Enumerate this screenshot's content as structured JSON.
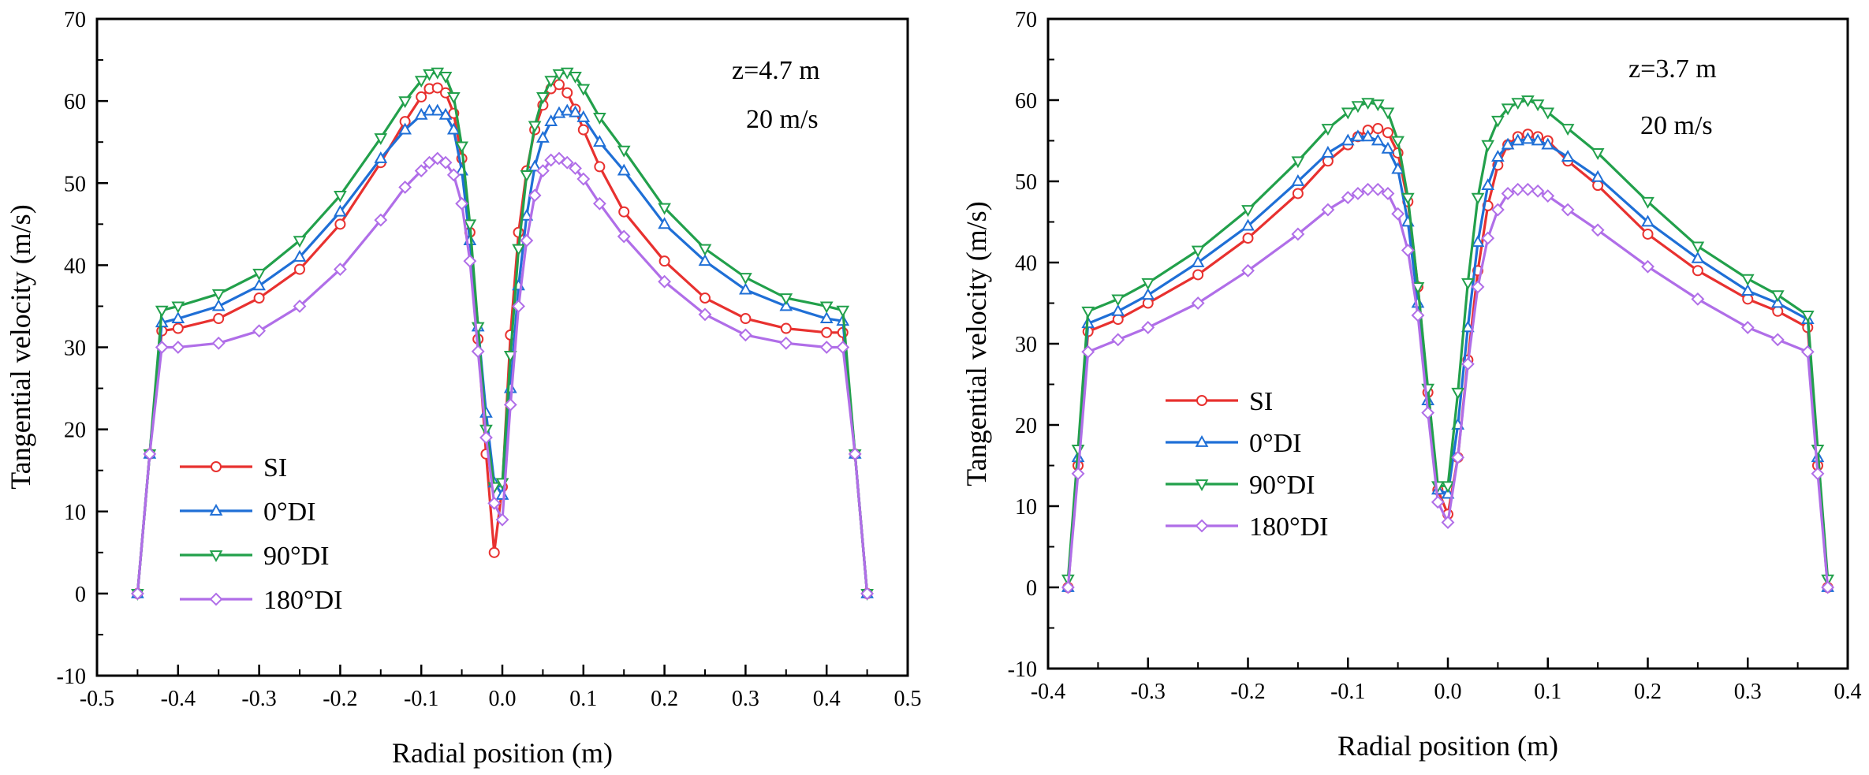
{
  "chart_data": [
    {
      "type": "line",
      "title": "",
      "annotations": [
        "z=4.7 m",
        "20 m/s"
      ],
      "xlabel": "Radial position (m)",
      "ylabel": "Tangential velocity (m/s)",
      "xlim": [
        -0.5,
        0.5
      ],
      "ylim": [
        -10,
        70
      ],
      "xticks": [
        -0.5,
        -0.4,
        -0.3,
        -0.2,
        -0.1,
        0.0,
        0.1,
        0.2,
        0.3,
        0.4,
        0.5
      ],
      "xtick_labels": [
        "-0.5",
        "-0.4",
        "-0.3",
        "-0.2",
        "-0.1",
        "0.0",
        "0.1",
        "0.2",
        "0.3",
        "0.4",
        "0.5"
      ],
      "yticks": [
        -10,
        0,
        10,
        20,
        30,
        40,
        50,
        60,
        70
      ],
      "ytick_labels": [
        "-10",
        "0",
        "10",
        "20",
        "30",
        "40",
        "50",
        "60",
        "70"
      ],
      "grid": false,
      "legend_position": "lower-left",
      "series": [
        {
          "name": "SI",
          "color": "#e8312f",
          "marker": "circle",
          "x": [
            -0.45,
            -0.435,
            -0.42,
            -0.4,
            -0.35,
            -0.3,
            -0.25,
            -0.2,
            -0.15,
            -0.12,
            -0.1,
            -0.09,
            -0.08,
            -0.07,
            -0.06,
            -0.05,
            -0.04,
            -0.03,
            -0.02,
            -0.01,
            0.0,
            0.01,
            0.02,
            0.03,
            0.04,
            0.05,
            0.06,
            0.07,
            0.08,
            0.09,
            0.1,
            0.12,
            0.15,
            0.2,
            0.25,
            0.3,
            0.35,
            0.4,
            0.42,
            0.435,
            0.45
          ],
          "y": [
            0,
            17,
            32,
            32.3,
            33.5,
            36,
            39.5,
            45,
            52.5,
            57.5,
            60.5,
            61.5,
            61.6,
            61,
            58.5,
            53,
            44,
            31,
            17,
            5,
            13,
            31.5,
            44,
            51.5,
            56.5,
            59.5,
            61.5,
            62,
            61,
            59,
            56.5,
            52,
            46.5,
            40.5,
            36,
            33.5,
            32.3,
            31.8,
            31.8,
            17,
            0
          ]
        },
        {
          "name": "0°DI",
          "color": "#1f6fd6",
          "marker": "triangle-up",
          "x": [
            -0.45,
            -0.435,
            -0.42,
            -0.4,
            -0.35,
            -0.3,
            -0.25,
            -0.2,
            -0.15,
            -0.12,
            -0.1,
            -0.09,
            -0.08,
            -0.07,
            -0.06,
            -0.05,
            -0.04,
            -0.03,
            -0.02,
            -0.01,
            0.0,
            0.01,
            0.02,
            0.03,
            0.04,
            0.05,
            0.06,
            0.07,
            0.08,
            0.09,
            0.1,
            0.12,
            0.15,
            0.2,
            0.25,
            0.3,
            0.35,
            0.4,
            0.42,
            0.435,
            0.45
          ],
          "y": [
            0,
            17,
            33,
            33.5,
            35,
            37.5,
            41,
            46.5,
            53,
            56.5,
            58.3,
            58.8,
            58.8,
            58.3,
            56.5,
            51.5,
            43,
            32.5,
            22,
            13.5,
            12,
            25,
            37.5,
            46,
            52,
            55.5,
            57.5,
            58.5,
            58.8,
            58.6,
            58,
            55,
            51.5,
            45,
            40.5,
            37,
            35,
            33.5,
            33.2,
            17,
            0
          ]
        },
        {
          "name": "90°DI",
          "color": "#22a04b",
          "marker": "triangle-down",
          "x": [
            -0.45,
            -0.435,
            -0.42,
            -0.4,
            -0.35,
            -0.3,
            -0.25,
            -0.2,
            -0.15,
            -0.12,
            -0.1,
            -0.09,
            -0.08,
            -0.07,
            -0.06,
            -0.05,
            -0.04,
            -0.03,
            -0.02,
            -0.01,
            0.0,
            0.01,
            0.02,
            0.03,
            0.04,
            0.05,
            0.06,
            0.07,
            0.08,
            0.09,
            0.1,
            0.12,
            0.15,
            0.2,
            0.25,
            0.3,
            0.35,
            0.4,
            0.42,
            0.435,
            0.45
          ],
          "y": [
            0,
            17,
            34.5,
            35,
            36.5,
            39,
            43,
            48.5,
            55.5,
            60,
            62.5,
            63.3,
            63.5,
            63,
            60.5,
            54.5,
            45,
            32.5,
            20,
            13,
            13.5,
            29,
            42,
            51,
            57,
            60.5,
            62.5,
            63.3,
            63.5,
            63,
            61.5,
            58,
            54,
            47,
            42,
            38.5,
            36,
            35,
            34.5,
            17,
            0
          ]
        },
        {
          "name": "180°DI",
          "color": "#b06ee8",
          "marker": "diamond",
          "x": [
            -0.45,
            -0.435,
            -0.42,
            -0.4,
            -0.35,
            -0.3,
            -0.25,
            -0.2,
            -0.15,
            -0.12,
            -0.1,
            -0.09,
            -0.08,
            -0.07,
            -0.06,
            -0.05,
            -0.04,
            -0.03,
            -0.02,
            -0.01,
            0.0,
            0.01,
            0.02,
            0.03,
            0.04,
            0.05,
            0.06,
            0.07,
            0.08,
            0.09,
            0.1,
            0.12,
            0.15,
            0.2,
            0.25,
            0.3,
            0.35,
            0.4,
            0.42,
            0.435,
            0.45
          ],
          "y": [
            0,
            17,
            30,
            30,
            30.5,
            32,
            35,
            39.5,
            45.5,
            49.5,
            51.5,
            52.5,
            53,
            52.5,
            51,
            47.5,
            40.5,
            29.5,
            19,
            11,
            9,
            23,
            35,
            43,
            48.5,
            51.5,
            52.8,
            53,
            52.5,
            51.8,
            50.5,
            47.5,
            43.5,
            38,
            34,
            31.5,
            30.5,
            30,
            30,
            17,
            0
          ]
        }
      ]
    },
    {
      "type": "line",
      "title": "",
      "annotations": [
        "z=3.7 m",
        "20 m/s"
      ],
      "xlabel": "Radial position (m)",
      "ylabel": "Tangential velocity (m/s)",
      "xlim": [
        -0.4,
        0.4
      ],
      "ylim": [
        -10,
        70
      ],
      "xticks": [
        -0.4,
        -0.3,
        -0.2,
        -0.1,
        0.0,
        0.1,
        0.2,
        0.3,
        0.4
      ],
      "xtick_labels": [
        "-0.4",
        "-0.3",
        "-0.2",
        "-0.1",
        "0.0",
        "0.1",
        "0.2",
        "0.3",
        "0.4"
      ],
      "yticks": [
        -10,
        0,
        10,
        20,
        30,
        40,
        50,
        60,
        70
      ],
      "ytick_labels": [
        "-10",
        "0",
        "10",
        "20",
        "30",
        "40",
        "50",
        "60",
        "70"
      ],
      "grid": false,
      "legend_position": "lower-left",
      "series": [
        {
          "name": "SI",
          "color": "#e8312f",
          "marker": "circle",
          "x": [
            -0.38,
            -0.37,
            -0.36,
            -0.33,
            -0.3,
            -0.25,
            -0.2,
            -0.15,
            -0.12,
            -0.1,
            -0.09,
            -0.08,
            -0.07,
            -0.06,
            -0.05,
            -0.04,
            -0.03,
            -0.02,
            -0.01,
            0.0,
            0.01,
            0.02,
            0.03,
            0.04,
            0.05,
            0.06,
            0.07,
            0.08,
            0.09,
            0.1,
            0.12,
            0.15,
            0.2,
            0.25,
            0.3,
            0.33,
            0.36,
            0.37,
            0.38
          ],
          "y": [
            0,
            15,
            31.5,
            33,
            35,
            38.5,
            43,
            48.5,
            52.5,
            54.5,
            55.5,
            56.3,
            56.5,
            56,
            53.5,
            47.5,
            37,
            24,
            12,
            9,
            16,
            28,
            39,
            47,
            52,
            54.5,
            55.5,
            55.8,
            55.5,
            55,
            52.5,
            49.5,
            43.5,
            39,
            35.5,
            34,
            32,
            15,
            0
          ]
        },
        {
          "name": "0°DI",
          "color": "#1f6fd6",
          "marker": "triangle-up",
          "x": [
            -0.38,
            -0.37,
            -0.36,
            -0.33,
            -0.3,
            -0.25,
            -0.2,
            -0.15,
            -0.12,
            -0.1,
            -0.09,
            -0.08,
            -0.07,
            -0.06,
            -0.05,
            -0.04,
            -0.03,
            -0.02,
            -0.01,
            0.0,
            0.01,
            0.02,
            0.03,
            0.04,
            0.05,
            0.06,
            0.07,
            0.08,
            0.09,
            0.1,
            0.12,
            0.15,
            0.2,
            0.25,
            0.3,
            0.33,
            0.36,
            0.37,
            0.38
          ],
          "y": [
            0,
            16,
            32.5,
            34,
            36,
            40,
            44.5,
            50,
            53.5,
            55,
            55.5,
            55.5,
            55,
            54,
            51.5,
            45,
            35,
            23,
            12,
            11.5,
            20,
            32,
            42.5,
            49.5,
            53,
            54.5,
            55,
            55.2,
            55,
            54.5,
            53,
            50.5,
            45,
            40.5,
            36.5,
            35,
            33,
            16,
            0
          ]
        },
        {
          "name": "90°DI",
          "color": "#22a04b",
          "marker": "triangle-down",
          "x": [
            -0.38,
            -0.37,
            -0.36,
            -0.33,
            -0.3,
            -0.25,
            -0.2,
            -0.15,
            -0.12,
            -0.1,
            -0.09,
            -0.08,
            -0.07,
            -0.06,
            -0.05,
            -0.04,
            -0.03,
            -0.02,
            -0.01,
            0.0,
            0.01,
            0.02,
            0.03,
            0.04,
            0.05,
            0.06,
            0.07,
            0.08,
            0.09,
            0.1,
            0.12,
            0.15,
            0.2,
            0.25,
            0.3,
            0.33,
            0.36,
            0.37,
            0.38
          ],
          "y": [
            1,
            17,
            34,
            35.5,
            37.5,
            41.5,
            46.5,
            52.5,
            56.5,
            58.5,
            59.3,
            59.7,
            59.5,
            58.5,
            55,
            48,
            37,
            24.5,
            12.5,
            12.5,
            24,
            37.5,
            48,
            54.5,
            57.5,
            59,
            59.7,
            60,
            59.5,
            58.5,
            56.5,
            53.5,
            47.5,
            42,
            38,
            36,
            33.5,
            17,
            1
          ]
        },
        {
          "name": "180°DI",
          "color": "#b06ee8",
          "marker": "diamond",
          "x": [
            -0.38,
            -0.37,
            -0.36,
            -0.33,
            -0.3,
            -0.25,
            -0.2,
            -0.15,
            -0.12,
            -0.1,
            -0.09,
            -0.08,
            -0.07,
            -0.06,
            -0.05,
            -0.04,
            -0.03,
            -0.02,
            -0.01,
            0.0,
            0.01,
            0.02,
            0.03,
            0.04,
            0.05,
            0.06,
            0.07,
            0.08,
            0.09,
            0.1,
            0.12,
            0.15,
            0.2,
            0.25,
            0.3,
            0.33,
            0.36,
            0.37,
            0.38
          ],
          "y": [
            0,
            14,
            29,
            30.5,
            32,
            35,
            39,
            43.5,
            46.5,
            48,
            48.5,
            49,
            49,
            48.5,
            46,
            41.5,
            33.5,
            21.5,
            10.5,
            8,
            16,
            27.5,
            37,
            43,
            46.5,
            48.5,
            49,
            49,
            48.8,
            48.2,
            46.5,
            44,
            39.5,
            35.5,
            32,
            30.5,
            29,
            14,
            0
          ]
        }
      ]
    }
  ]
}
